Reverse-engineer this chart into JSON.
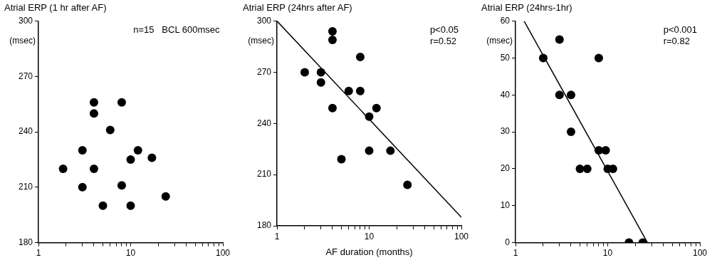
{
  "chart_data": [
    {
      "type": "scatter",
      "title": "Atrial ERP (1 hr after AF)",
      "ylabel": "(msec)",
      "log": "x",
      "grid": false,
      "legend": false,
      "marker": "circle",
      "xlim": [
        1,
        100
      ],
      "xticks": [
        1,
        {
          "value": 2,
          "label": null
        },
        {
          "value": 3,
          "label": null
        },
        {
          "value": 4,
          "label": null
        },
        {
          "value": 5,
          "label": null
        },
        {
          "value": 6,
          "label": null
        },
        {
          "value": 7,
          "label": null
        },
        {
          "value": 8,
          "label": null
        },
        {
          "value": 9,
          "label": null
        },
        10,
        {
          "value": 20,
          "label": null
        },
        {
          "value": 30,
          "label": null
        },
        {
          "value": 40,
          "label": null
        },
        {
          "value": 50,
          "label": null
        },
        {
          "value": 60,
          "label": null
        },
        {
          "value": 70,
          "label": null
        },
        {
          "value": 80,
          "label": null
        },
        {
          "value": 90,
          "label": null
        },
        100
      ],
      "ylim": [
        180,
        300
      ],
      "yticks": [
        180,
        210,
        240,
        270,
        300
      ],
      "annotations": [
        "n=15   BCL 600msec"
      ],
      "series": [
        {
          "type": "scatter",
          "color": "#000000",
          "x": [
            1.85,
            3,
            3,
            4,
            4,
            4,
            5,
            6,
            8,
            8,
            10,
            12,
            10,
            17,
            24
          ],
          "values": [
            220,
            230,
            210,
            256,
            250,
            220,
            200,
            241,
            256,
            211,
            225,
            230,
            200,
            226,
            205
          ]
        }
      ]
    },
    {
      "type": "scatter",
      "title": "Atrial ERP (24hrs after AF)",
      "xlabel": "AF duration (months)",
      "ylabel": "(msec)",
      "log": "x",
      "grid": false,
      "legend": false,
      "marker": "circle",
      "xlim": [
        1,
        100
      ],
      "xticks": [
        1,
        {
          "value": 2,
          "label": null
        },
        {
          "value": 3,
          "label": null
        },
        {
          "value": 4,
          "label": null
        },
        {
          "value": 5,
          "label": null
        },
        {
          "value": 6,
          "label": null
        },
        {
          "value": 7,
          "label": null
        },
        {
          "value": 8,
          "label": null
        },
        {
          "value": 9,
          "label": null
        },
        10,
        {
          "value": 20,
          "label": null
        },
        {
          "value": 30,
          "label": null
        },
        {
          "value": 40,
          "label": null
        },
        {
          "value": 50,
          "label": null
        },
        {
          "value": 60,
          "label": null
        },
        {
          "value": 70,
          "label": null
        },
        {
          "value": 80,
          "label": null
        },
        {
          "value": 90,
          "label": null
        },
        100
      ],
      "ylim": [
        180,
        300
      ],
      "yticks": [
        180,
        210,
        240,
        270,
        300
      ],
      "annotations": [
        "p<0.05",
        "r=0.52"
      ],
      "series": [
        {
          "type": "scatter",
          "color": "#000000",
          "x": [
            2,
            3,
            3,
            4,
            4,
            4,
            5,
            6,
            8,
            8,
            10,
            12,
            10,
            17,
            26
          ],
          "values": [
            270,
            270,
            264,
            294,
            289,
            249,
            219,
            259,
            259,
            279,
            244,
            249,
            224,
            224,
            204
          ]
        },
        {
          "type": "line",
          "color": "#000000",
          "marker": "none",
          "line_style": "solid",
          "x": [
            1,
            100
          ],
          "values": [
            300,
            185
          ]
        }
      ]
    },
    {
      "type": "scatter",
      "title": "Atrial ERP (24hrs-1hr)",
      "ylabel": "(msec)",
      "log": "x",
      "grid": false,
      "legend": false,
      "marker": "circle",
      "xlim": [
        1,
        100
      ],
      "xticks": [
        1,
        {
          "value": 2,
          "label": null
        },
        {
          "value": 3,
          "label": null
        },
        {
          "value": 4,
          "label": null
        },
        {
          "value": 5,
          "label": null
        },
        {
          "value": 6,
          "label": null
        },
        {
          "value": 7,
          "label": null
        },
        {
          "value": 8,
          "label": null
        },
        {
          "value": 9,
          "label": null
        },
        10,
        {
          "value": 20,
          "label": null
        },
        {
          "value": 30,
          "label": null
        },
        {
          "value": 40,
          "label": null
        },
        {
          "value": 50,
          "label": null
        },
        {
          "value": 60,
          "label": null
        },
        {
          "value": 70,
          "label": null
        },
        {
          "value": 80,
          "label": null
        },
        {
          "value": 90,
          "label": null
        },
        100
      ],
      "ylim": [
        0,
        60
      ],
      "yticks": [
        0,
        10,
        20,
        30,
        40,
        50,
        60
      ],
      "annotations": [
        "p<0.001",
        "r=0.82"
      ],
      "series": [
        {
          "type": "scatter",
          "color": "#000000",
          "x": [
            2,
            3,
            3,
            4,
            4,
            5,
            6,
            8,
            8,
            9.5,
            10,
            11.4,
            17,
            24
          ],
          "values": [
            50,
            55,
            40,
            40,
            30,
            20,
            20,
            50,
            25,
            25,
            20,
            20,
            0,
            0
          ]
        },
        {
          "type": "line",
          "color": "#000000",
          "marker": "none",
          "line_style": "solid",
          "x": [
            1.24,
            27
          ],
          "values": [
            60,
            0
          ]
        }
      ]
    }
  ]
}
